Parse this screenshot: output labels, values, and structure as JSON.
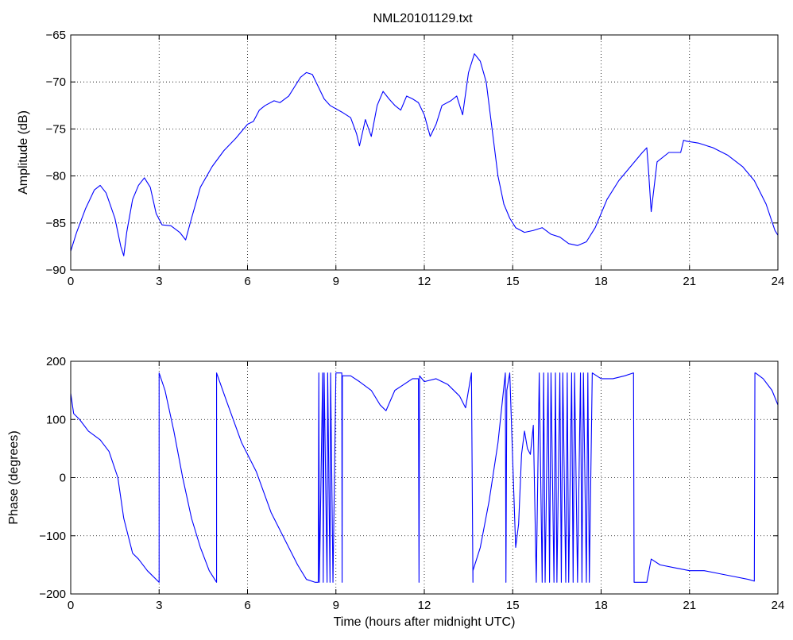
{
  "figure": {
    "title": "NML20101129.txt",
    "background": "#ffffff",
    "line_color": "#0000ff"
  },
  "chart_data": [
    {
      "type": "line",
      "title": "NML20101129.txt",
      "xlabel": "",
      "ylabel": "Amplitude (dB)",
      "xlim": [
        0,
        24
      ],
      "ylim": [
        -90,
        -65
      ],
      "xticks": [
        0,
        3,
        6,
        9,
        12,
        15,
        18,
        21,
        24
      ],
      "yticks": [
        -90,
        -85,
        -80,
        -75,
        -70,
        -65
      ],
      "grid": true,
      "series": [
        {
          "x": [
            0,
            0.2,
            0.5,
            0.8,
            1.0,
            1.2,
            1.5,
            1.7,
            1.8,
            1.9,
            2.1,
            2.3,
            2.5,
            2.7,
            2.9,
            3.1,
            3.4,
            3.7,
            3.9,
            4.1,
            4.4,
            4.8,
            5.2,
            5.6,
            6.0,
            6.2,
            6.4,
            6.6,
            6.9,
            7.1,
            7.4,
            7.6,
            7.8,
            8.0,
            8.2,
            8.4,
            8.6,
            8.8,
            9.2,
            9.5,
            9.7,
            9.8,
            10.0,
            10.2,
            10.4,
            10.6,
            10.8,
            11.0,
            11.2,
            11.4,
            11.6,
            11.8,
            12.0,
            12.2,
            12.4,
            12.6,
            12.9,
            13.1,
            13.3,
            13.5,
            13.7,
            13.9,
            14.1,
            14.3,
            14.5,
            14.7,
            14.9,
            15.1,
            15.4,
            15.7,
            16.0,
            16.3,
            16.6,
            16.9,
            17.2,
            17.5,
            17.8,
            18.2,
            18.6,
            19.0,
            19.4,
            19.55,
            19.6,
            19.7,
            19.9,
            20.3,
            20.7,
            20.8,
            20.9,
            21.3,
            21.8,
            22.3,
            22.8,
            23.2,
            23.6,
            23.9,
            24.0
          ],
          "y": [
            -88.0,
            -86.0,
            -83.5,
            -81.5,
            -81.0,
            -81.8,
            -84.5,
            -87.5,
            -88.5,
            -86.0,
            -82.5,
            -81.0,
            -80.2,
            -81.2,
            -84.0,
            -85.2,
            -85.3,
            -86.0,
            -86.8,
            -84.5,
            -81.2,
            -79.0,
            -77.3,
            -76.0,
            -74.5,
            -74.2,
            -73.0,
            -72.5,
            -72.0,
            -72.2,
            -71.5,
            -70.5,
            -69.5,
            -69.0,
            -69.2,
            -70.5,
            -71.8,
            -72.5,
            -73.2,
            -73.8,
            -75.5,
            -76.8,
            -74.0,
            -75.8,
            -72.5,
            -71.0,
            -71.8,
            -72.5,
            -73.0,
            -71.5,
            -71.8,
            -72.2,
            -73.5,
            -75.8,
            -74.5,
            -72.5,
            -72.0,
            -71.5,
            -73.5,
            -69.0,
            -67.0,
            -67.8,
            -70.0,
            -75.0,
            -80.0,
            -83.0,
            -84.5,
            -85.5,
            -86.0,
            -85.8,
            -85.5,
            -86.2,
            -86.5,
            -87.2,
            -87.4,
            -87.0,
            -85.5,
            -82.5,
            -80.5,
            -79.0,
            -77.5,
            -77.0,
            -79.0,
            -83.8,
            -78.5,
            -77.5,
            -77.5,
            -76.2,
            -76.3,
            -76.5,
            -77.0,
            -77.8,
            -79.0,
            -80.5,
            -83.0,
            -85.8,
            -86.3
          ]
        }
      ]
    },
    {
      "type": "line",
      "title": "",
      "xlabel": "Time (hours after midnight UTC)",
      "ylabel": "Phase (degrees)",
      "xlim": [
        0,
        24
      ],
      "ylim": [
        -200,
        200
      ],
      "xticks": [
        0,
        3,
        6,
        9,
        12,
        15,
        18,
        21,
        24
      ],
      "yticks": [
        -200,
        -100,
        0,
        100,
        200
      ],
      "grid": true,
      "series": [
        {
          "x": [
            0,
            0.1,
            0.3,
            0.6,
            1.0,
            1.3,
            1.6,
            1.8,
            2.0,
            2.1,
            2.3,
            2.6,
            3.0,
            3.0,
            3.2,
            3.5,
            3.8,
            4.1,
            4.4,
            4.7,
            4.95,
            4.95,
            5.3,
            5.8,
            6.3,
            6.8,
            7.3,
            7.7,
            8.0,
            8.3,
            8.4,
            8.42,
            8.44,
            8.55,
            8.57,
            8.6,
            8.7,
            8.72,
            8.8,
            8.82,
            8.9,
            9.0,
            9.2,
            9.21,
            9.22,
            9.5,
            9.8,
            10.2,
            10.5,
            10.7,
            11.0,
            11.3,
            11.6,
            11.8,
            11.82,
            11.84,
            12.0,
            12.4,
            12.8,
            13.2,
            13.4,
            13.6,
            13.65,
            13.65,
            13.9,
            14.2,
            14.5,
            14.75,
            14.77,
            14.8,
            14.9,
            15.1,
            15.2,
            15.3,
            15.4,
            15.5,
            15.6,
            15.7,
            15.8,
            15.9,
            16.0,
            16.05,
            16.1,
            16.2,
            16.25,
            16.3,
            16.4,
            16.45,
            16.5,
            16.6,
            16.65,
            16.7,
            16.8,
            16.85,
            16.9,
            17.0,
            17.05,
            17.1,
            17.2,
            17.3,
            17.35,
            17.4,
            17.5,
            17.55,
            17.6,
            17.7,
            18.0,
            18.4,
            18.8,
            19.1,
            19.12,
            19.2,
            19.5,
            19.55,
            19.7,
            20.0,
            20.5,
            21.0,
            21.5,
            22.0,
            22.5,
            23.0,
            23.2,
            23.22,
            23.24,
            23.5,
            23.8,
            24.0
          ],
          "y": [
            145,
            110,
            100,
            80,
            65,
            45,
            0,
            -70,
            -110,
            -130,
            -140,
            -160,
            -180,
            180,
            150,
            80,
            0,
            -70,
            -120,
            -160,
            -180,
            180,
            130,
            60,
            10,
            -60,
            -110,
            -150,
            -175,
            -180,
            -180,
            180,
            -180,
            180,
            -180,
            180,
            -180,
            180,
            -180,
            180,
            -180,
            180,
            180,
            -180,
            175,
            175,
            165,
            150,
            125,
            115,
            150,
            160,
            170,
            170,
            -180,
            175,
            165,
            170,
            160,
            140,
            120,
            180,
            -180,
            -160,
            -120,
            -40,
            60,
            180,
            -180,
            150,
            180,
            -120,
            -80,
            40,
            80,
            50,
            40,
            90,
            -180,
            180,
            -180,
            180,
            -180,
            180,
            -180,
            180,
            -180,
            180,
            -180,
            180,
            -180,
            180,
            -180,
            180,
            -180,
            180,
            -180,
            180,
            -180,
            180,
            -180,
            180,
            -180,
            180,
            -180,
            180,
            170,
            170,
            175,
            180,
            -180,
            -180,
            -180,
            -180,
            -140,
            -150,
            -155,
            -160,
            -160,
            -165,
            -170,
            -175,
            -178,
            180,
            180,
            170,
            150,
            125
          ]
        }
      ]
    }
  ]
}
